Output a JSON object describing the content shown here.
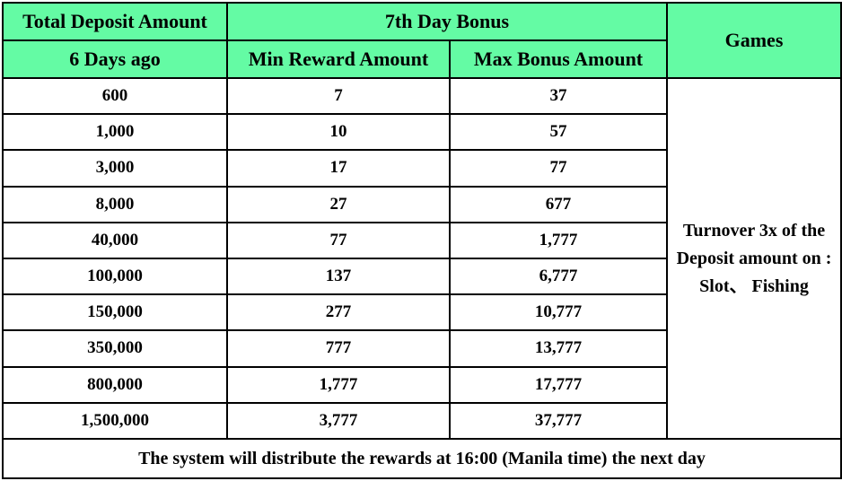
{
  "colors": {
    "header_bg": "#64fba4",
    "border": "#000000",
    "body_bg": "#ffffff",
    "text": "#000000"
  },
  "table": {
    "header": {
      "total_deposit": "Total Deposit Amount",
      "sub_deposit": "6 Days ago",
      "bonus_group": "7th Day Bonus",
      "min_reward": "Min Reward Amount",
      "max_bonus": "Max Bonus Amount",
      "games": "Games"
    },
    "rows": [
      {
        "deposit": "600",
        "min": "7",
        "max": "37"
      },
      {
        "deposit": "1,000",
        "min": "10",
        "max": "57"
      },
      {
        "deposit": "3,000",
        "min": "17",
        "max": "77"
      },
      {
        "deposit": "8,000",
        "min": "27",
        "max": "677"
      },
      {
        "deposit": "40,000",
        "min": "77",
        "max": "1,777"
      },
      {
        "deposit": "100,000",
        "min": "137",
        "max": "6,777"
      },
      {
        "deposit": "150,000",
        "min": "277",
        "max": "10,777"
      },
      {
        "deposit": "350,000",
        "min": "777",
        "max": "13,777"
      },
      {
        "deposit": "800,000",
        "min": "1,777",
        "max": "17,777"
      },
      {
        "deposit": "1,500,000",
        "min": "3,777",
        "max": "37,777"
      }
    ],
    "games_note": {
      "line1": "Turnover 3x of the",
      "line2": "Deposit amount on :",
      "line3": "Slot、 Fishing"
    },
    "footer": "The system will distribute the rewards at 16:00 (Manila time) the next day"
  },
  "chart_data": {
    "type": "table",
    "title": "7th Day Bonus",
    "columns": [
      "Total Deposit Amount (6 Days ago)",
      "Min Reward Amount",
      "Max Bonus Amount",
      "Games"
    ],
    "rows": [
      [
        "600",
        "7",
        "37"
      ],
      [
        "1,000",
        "10",
        "57"
      ],
      [
        "3,000",
        "17",
        "77"
      ],
      [
        "8,000",
        "27",
        "677"
      ],
      [
        "40,000",
        "77",
        "1,777"
      ],
      [
        "100,000",
        "137",
        "6,777"
      ],
      [
        "150,000",
        "277",
        "10,777"
      ],
      [
        "350,000",
        "777",
        "13,777"
      ],
      [
        "800,000",
        "1,777",
        "17,777"
      ],
      [
        "1,500,000",
        "3,777",
        "37,777"
      ]
    ],
    "games": "Turnover 3x of the Deposit amount on : Slot、 Fishing",
    "note": "The system will distribute the rewards at 16:00 (Manila time) the next day",
    "layout": "grid with green header band; Games column merged across all data rows; footer note spans full width"
  }
}
